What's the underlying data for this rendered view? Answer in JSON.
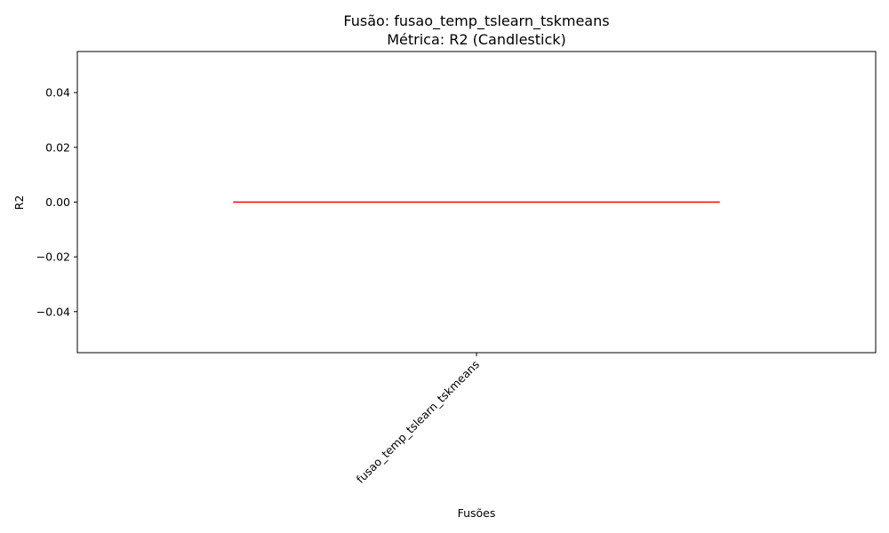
{
  "chart_data": {
    "type": "candlestick",
    "title": "Fusão: fusao_temp_tslearn_tskmeans",
    "subtitle": "Métrica: R2 (Candlestick)",
    "xlabel": "Fusões",
    "ylabel": "R2",
    "categories": [
      "fusao_temp_tslearn_tskmeans"
    ],
    "series": [
      {
        "values": [
          {
            "category": "fusao_temp_tslearn_tskmeans",
            "open": 0.0,
            "high": 0.0,
            "low": 0.0,
            "close": 0.0
          }
        ]
      }
    ],
    "ylim": [
      -0.055,
      0.055
    ],
    "yticks": [
      -0.04,
      -0.02,
      0.0,
      0.02,
      0.04
    ],
    "ytick_labels": [
      "−0.04",
      "−0.02",
      "0.00",
      "0.02",
      "0.04"
    ],
    "grid": false,
    "colors": {
      "candle": "#ff0000",
      "axes": "#000000"
    }
  }
}
